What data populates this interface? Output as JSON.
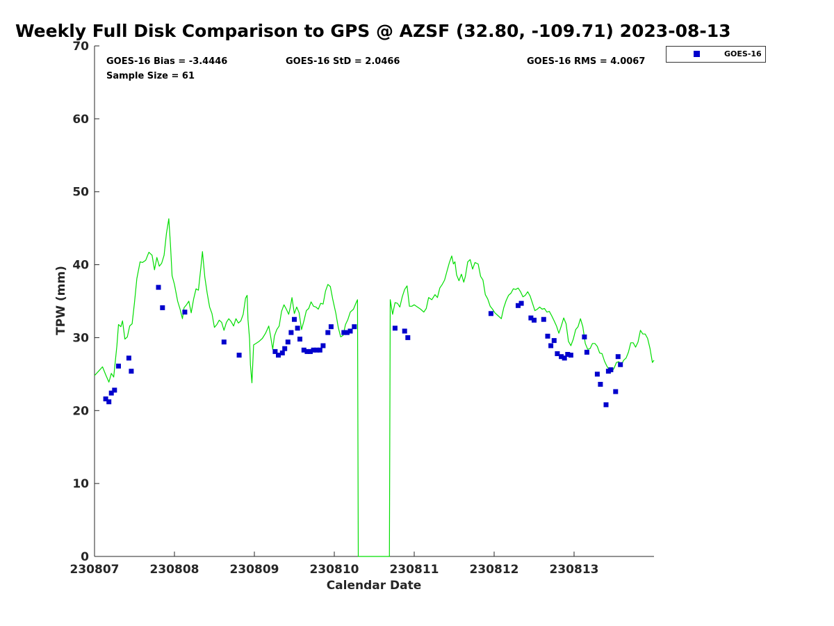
{
  "chart_data": {
    "type": "scatter",
    "title": "Weekly Full Disk Comparison to GPS @ AZSF (32.80, -109.71) 2023-08-13",
    "xlabel": "Calendar Date",
    "ylabel": "TPW (mm)",
    "xlim": [
      0,
      7
    ],
    "ylim": [
      0,
      70
    ],
    "x_ticks": [
      {
        "value": 0,
        "label": "230807"
      },
      {
        "value": 1,
        "label": "230808"
      },
      {
        "value": 2,
        "label": "230809"
      },
      {
        "value": 3,
        "label": "230810"
      },
      {
        "value": 4,
        "label": "230811"
      },
      {
        "value": 5,
        "label": "230812"
      },
      {
        "value": 6,
        "label": "230813"
      }
    ],
    "y_ticks": [
      0,
      10,
      20,
      30,
      40,
      50,
      60,
      70
    ],
    "grid": false,
    "legend_position": "outside-top-right",
    "annotations": {
      "bias": "GOES-16 Bias = -3.4446",
      "std": "GOES-16 StD = 2.0466",
      "rms": "GOES-16 RMS = 4.0067",
      "sample": "Sample Size = 61"
    },
    "series": [
      {
        "name": "GOES-16",
        "kind": "scatter",
        "color": "#0000cc",
        "marker": "square",
        "points": [
          [
            0.14,
            21.6
          ],
          [
            0.18,
            21.2
          ],
          [
            0.21,
            22.4
          ],
          [
            0.25,
            22.8
          ],
          [
            0.3,
            26.1
          ],
          [
            0.43,
            27.2
          ],
          [
            0.46,
            25.4
          ],
          [
            0.8,
            36.9
          ],
          [
            0.85,
            34.1
          ],
          [
            1.13,
            33.5
          ],
          [
            1.62,
            29.4
          ],
          [
            1.81,
            27.6
          ],
          [
            2.26,
            28.1
          ],
          [
            2.3,
            27.6
          ],
          [
            2.35,
            27.9
          ],
          [
            2.38,
            28.5
          ],
          [
            2.42,
            29.4
          ],
          [
            2.46,
            30.7
          ],
          [
            2.5,
            32.5
          ],
          [
            2.54,
            31.3
          ],
          [
            2.57,
            29.8
          ],
          [
            2.62,
            28.3
          ],
          [
            2.66,
            28.1
          ],
          [
            2.7,
            28.1
          ],
          [
            2.74,
            28.3
          ],
          [
            2.78,
            28.3
          ],
          [
            2.82,
            28.3
          ],
          [
            2.86,
            28.9
          ],
          [
            2.92,
            30.7
          ],
          [
            2.96,
            31.5
          ],
          [
            3.12,
            30.7
          ],
          [
            3.16,
            30.7
          ],
          [
            3.2,
            30.9
          ],
          [
            3.25,
            31.5
          ],
          [
            3.76,
            31.3
          ],
          [
            3.88,
            30.9
          ],
          [
            3.92,
            30.0
          ],
          [
            4.96,
            33.3
          ],
          [
            5.3,
            34.4
          ],
          [
            5.34,
            34.7
          ],
          [
            5.46,
            32.7
          ],
          [
            5.5,
            32.4
          ],
          [
            5.62,
            32.5
          ],
          [
            5.67,
            30.2
          ],
          [
            5.71,
            28.9
          ],
          [
            5.75,
            29.6
          ],
          [
            5.79,
            27.8
          ],
          [
            5.84,
            27.4
          ],
          [
            5.88,
            27.2
          ],
          [
            5.92,
            27.7
          ],
          [
            5.96,
            27.6
          ],
          [
            6.13,
            30.1
          ],
          [
            6.16,
            28.0
          ],
          [
            6.29,
            25.0
          ],
          [
            6.33,
            23.6
          ],
          [
            6.4,
            20.8
          ],
          [
            6.43,
            25.4
          ],
          [
            6.46,
            25.6
          ],
          [
            6.52,
            22.6
          ],
          [
            6.55,
            27.4
          ],
          [
            6.58,
            26.3
          ]
        ]
      },
      {
        "kind": "line",
        "color": "#00dd00",
        "points": [
          [
            0.0,
            24.8
          ],
          [
            0.05,
            25.4
          ],
          [
            0.1,
            26.0
          ],
          [
            0.14,
            24.9
          ],
          [
            0.18,
            23.9
          ],
          [
            0.21,
            25.1
          ],
          [
            0.24,
            24.6
          ],
          [
            0.28,
            28.9
          ],
          [
            0.3,
            31.8
          ],
          [
            0.33,
            31.5
          ],
          [
            0.35,
            32.3
          ],
          [
            0.38,
            29.8
          ],
          [
            0.41,
            30.1
          ],
          [
            0.44,
            31.6
          ],
          [
            0.47,
            31.9
          ],
          [
            0.5,
            34.8
          ],
          [
            0.53,
            38.1
          ],
          [
            0.57,
            40.4
          ],
          [
            0.6,
            40.3
          ],
          [
            0.64,
            40.6
          ],
          [
            0.68,
            41.7
          ],
          [
            0.72,
            41.3
          ],
          [
            0.75,
            39.3
          ],
          [
            0.78,
            41.0
          ],
          [
            0.81,
            39.8
          ],
          [
            0.84,
            40.2
          ],
          [
            0.87,
            41.3
          ],
          [
            0.9,
            44.3
          ],
          [
            0.93,
            46.3
          ],
          [
            0.95,
            42.7
          ],
          [
            0.97,
            38.5
          ],
          [
            1.0,
            37.3
          ],
          [
            1.04,
            35.0
          ],
          [
            1.07,
            33.9
          ],
          [
            1.1,
            32.6
          ],
          [
            1.12,
            34.1
          ],
          [
            1.15,
            34.5
          ],
          [
            1.18,
            35.0
          ],
          [
            1.21,
            33.4
          ],
          [
            1.24,
            35.3
          ],
          [
            1.27,
            36.7
          ],
          [
            1.3,
            36.5
          ],
          [
            1.33,
            39.5
          ],
          [
            1.35,
            41.8
          ],
          [
            1.38,
            38.3
          ],
          [
            1.41,
            36.1
          ],
          [
            1.44,
            34.2
          ],
          [
            1.47,
            33.3
          ],
          [
            1.5,
            31.4
          ],
          [
            1.53,
            31.8
          ],
          [
            1.56,
            32.4
          ],
          [
            1.59,
            32.1
          ],
          [
            1.62,
            31.0
          ],
          [
            1.65,
            32.1
          ],
          [
            1.68,
            32.6
          ],
          [
            1.71,
            32.2
          ],
          [
            1.74,
            31.6
          ],
          [
            1.77,
            32.6
          ],
          [
            1.8,
            32.0
          ],
          [
            1.83,
            32.3
          ],
          [
            1.86,
            33.2
          ],
          [
            1.89,
            35.4
          ],
          [
            1.91,
            35.8
          ],
          [
            1.92,
            32.5
          ],
          [
            1.94,
            29.8
          ],
          [
            1.95,
            26.3
          ],
          [
            1.97,
            23.8
          ],
          [
            1.99,
            29.0
          ],
          [
            2.02,
            29.2
          ],
          [
            2.06,
            29.5
          ],
          [
            2.1,
            29.9
          ],
          [
            2.14,
            30.6
          ],
          [
            2.18,
            31.6
          ],
          [
            2.2,
            30.4
          ],
          [
            2.23,
            28.4
          ],
          [
            2.25,
            30.2
          ],
          [
            2.28,
            31.1
          ],
          [
            2.31,
            31.6
          ],
          [
            2.34,
            33.6
          ],
          [
            2.37,
            34.5
          ],
          [
            2.4,
            33.9
          ],
          [
            2.43,
            33.2
          ],
          [
            2.45,
            34.2
          ],
          [
            2.47,
            35.5
          ],
          [
            2.5,
            33.3
          ],
          [
            2.53,
            34.2
          ],
          [
            2.56,
            33.4
          ],
          [
            2.59,
            31.1
          ],
          [
            2.62,
            32.3
          ],
          [
            2.65,
            33.7
          ],
          [
            2.68,
            34.0
          ],
          [
            2.71,
            34.9
          ],
          [
            2.74,
            34.3
          ],
          [
            2.77,
            34.2
          ],
          [
            2.8,
            33.9
          ],
          [
            2.83,
            34.7
          ],
          [
            2.86,
            34.6
          ],
          [
            2.89,
            36.4
          ],
          [
            2.92,
            37.3
          ],
          [
            2.95,
            37.0
          ],
          [
            2.98,
            35.3
          ],
          [
            3.02,
            33.3
          ],
          [
            3.05,
            31.4
          ],
          [
            3.08,
            30.1
          ],
          [
            3.11,
            30.3
          ],
          [
            3.14,
            31.8
          ],
          [
            3.17,
            32.5
          ],
          [
            3.2,
            33.5
          ],
          [
            3.24,
            33.9
          ],
          [
            3.27,
            34.7
          ],
          [
            3.29,
            35.2
          ],
          [
            3.3,
            0.0
          ],
          [
            3.69,
            0.0
          ],
          [
            3.7,
            35.2
          ],
          [
            3.73,
            33.2
          ],
          [
            3.76,
            34.8
          ],
          [
            3.79,
            34.7
          ],
          [
            3.82,
            34.2
          ],
          [
            3.85,
            35.6
          ],
          [
            3.88,
            36.6
          ],
          [
            3.91,
            37.1
          ],
          [
            3.94,
            34.3
          ],
          [
            3.97,
            34.3
          ],
          [
            4.0,
            34.5
          ],
          [
            4.04,
            34.2
          ],
          [
            4.08,
            33.9
          ],
          [
            4.12,
            33.5
          ],
          [
            4.15,
            34.0
          ],
          [
            4.18,
            35.5
          ],
          [
            4.22,
            35.2
          ],
          [
            4.26,
            35.9
          ],
          [
            4.29,
            35.5
          ],
          [
            4.32,
            36.8
          ],
          [
            4.35,
            37.3
          ],
          [
            4.38,
            37.9
          ],
          [
            4.41,
            39.1
          ],
          [
            4.44,
            40.3
          ],
          [
            4.47,
            41.2
          ],
          [
            4.49,
            40.1
          ],
          [
            4.51,
            40.4
          ],
          [
            4.53,
            38.6
          ],
          [
            4.56,
            37.8
          ],
          [
            4.59,
            38.7
          ],
          [
            4.62,
            37.6
          ],
          [
            4.64,
            38.4
          ],
          [
            4.67,
            40.4
          ],
          [
            4.7,
            40.7
          ],
          [
            4.73,
            39.4
          ],
          [
            4.76,
            40.3
          ],
          [
            4.8,
            40.1
          ],
          [
            4.83,
            38.4
          ],
          [
            4.86,
            37.9
          ],
          [
            4.89,
            35.9
          ],
          [
            4.92,
            35.3
          ],
          [
            4.95,
            34.3
          ],
          [
            4.98,
            33.9
          ],
          [
            5.01,
            33.4
          ],
          [
            5.05,
            33.0
          ],
          [
            5.09,
            32.6
          ],
          [
            5.12,
            34.1
          ],
          [
            5.15,
            35.1
          ],
          [
            5.18,
            35.8
          ],
          [
            5.21,
            36.1
          ],
          [
            5.24,
            36.7
          ],
          [
            5.27,
            36.6
          ],
          [
            5.3,
            36.8
          ],
          [
            5.33,
            36.3
          ],
          [
            5.36,
            35.6
          ],
          [
            5.39,
            35.8
          ],
          [
            5.42,
            36.3
          ],
          [
            5.45,
            35.7
          ],
          [
            5.48,
            34.7
          ],
          [
            5.51,
            33.7
          ],
          [
            5.54,
            33.9
          ],
          [
            5.57,
            34.2
          ],
          [
            5.6,
            33.9
          ],
          [
            5.63,
            34.0
          ],
          [
            5.66,
            33.5
          ],
          [
            5.69,
            33.6
          ],
          [
            5.72,
            33.0
          ],
          [
            5.75,
            32.3
          ],
          [
            5.78,
            31.6
          ],
          [
            5.81,
            30.6
          ],
          [
            5.84,
            31.6
          ],
          [
            5.87,
            32.7
          ],
          [
            5.9,
            31.9
          ],
          [
            5.93,
            29.5
          ],
          [
            5.96,
            28.9
          ],
          [
            5.99,
            29.8
          ],
          [
            6.02,
            31.1
          ],
          [
            6.05,
            31.5
          ],
          [
            6.08,
            32.6
          ],
          [
            6.11,
            31.5
          ],
          [
            6.14,
            29.2
          ],
          [
            6.17,
            28.4
          ],
          [
            6.2,
            28.5
          ],
          [
            6.23,
            29.2
          ],
          [
            6.26,
            29.2
          ],
          [
            6.29,
            28.8
          ],
          [
            6.32,
            27.9
          ],
          [
            6.35,
            27.8
          ],
          [
            6.38,
            26.8
          ],
          [
            6.41,
            26.1
          ],
          [
            6.44,
            25.6
          ],
          [
            6.47,
            25.3
          ],
          [
            6.5,
            25.8
          ],
          [
            6.53,
            26.6
          ],
          [
            6.56,
            26.7
          ],
          [
            6.59,
            26.2
          ],
          [
            6.62,
            26.9
          ],
          [
            6.65,
            27.2
          ],
          [
            6.68,
            28.0
          ],
          [
            6.71,
            29.3
          ],
          [
            6.74,
            29.3
          ],
          [
            6.77,
            28.7
          ],
          [
            6.8,
            29.4
          ],
          [
            6.83,
            31.0
          ],
          [
            6.86,
            30.5
          ],
          [
            6.89,
            30.5
          ],
          [
            6.92,
            29.9
          ],
          [
            6.95,
            28.5
          ],
          [
            6.98,
            26.6
          ],
          [
            7.0,
            26.9
          ]
        ]
      }
    ]
  }
}
